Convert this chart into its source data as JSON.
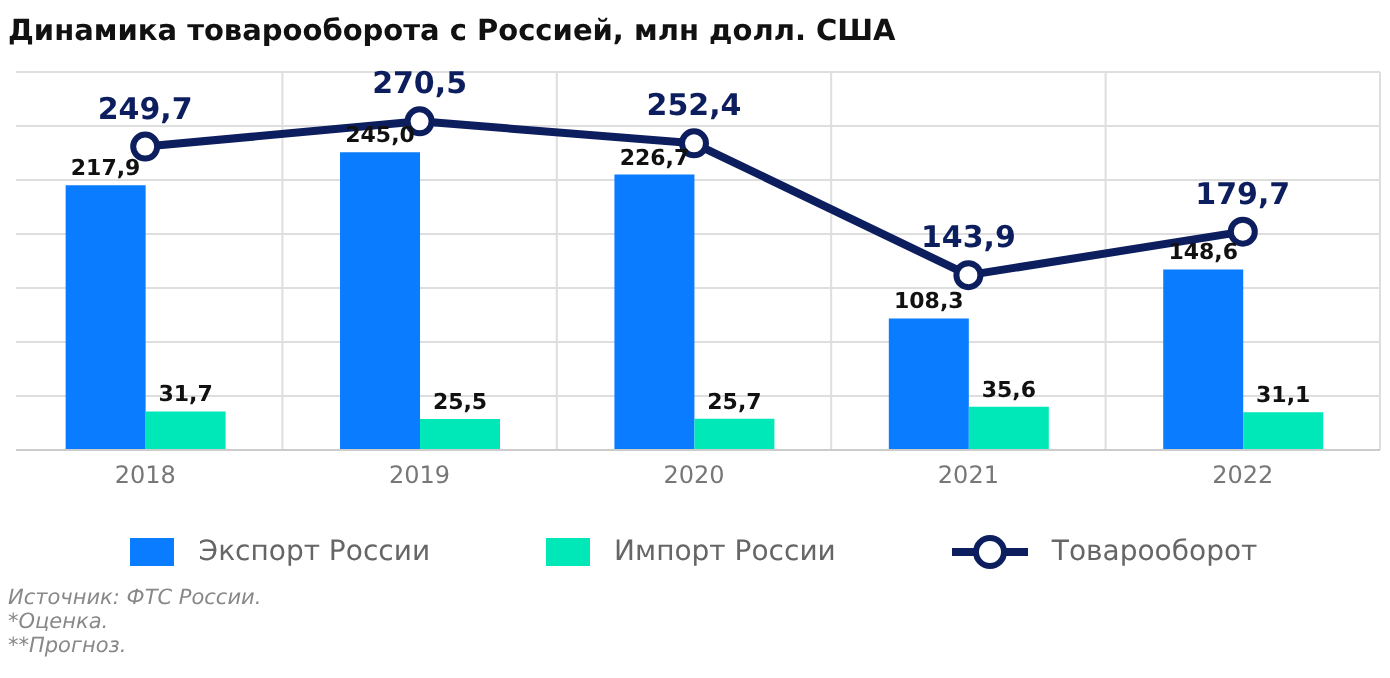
{
  "chart_data": {
    "type": "bar",
    "title": "Динамика товарооборота с Россией, млн долл. США",
    "categories": [
      "2018",
      "2019",
      "2020",
      "2021",
      "2022"
    ],
    "series": [
      {
        "name": "Экспорт России",
        "color": "#0a7cff",
        "values": [
          217.9,
          245.0,
          226.7,
          108.3,
          148.6
        ],
        "value_labels": [
          "217,9",
          "245,0",
          "226,7",
          "108,3",
          "148,6"
        ]
      },
      {
        "name": "Импорт России",
        "color": "#00e8b8",
        "values": [
          31.7,
          25.5,
          25.7,
          35.6,
          31.1
        ],
        "value_labels": [
          "31,7",
          "25,5",
          "25,7",
          "35,6",
          "31,1"
        ]
      },
      {
        "name": "Товарооборот",
        "type": "line",
        "color": "#0d1e5e",
        "values": [
          249.7,
          270.5,
          252.4,
          143.9,
          179.7
        ],
        "value_labels": [
          "249,7",
          "270,5",
          "252,4",
          "143,9",
          "179,7"
        ]
      }
    ],
    "tick_labels": "x",
    "grid": true,
    "legend": "bottom",
    "marker": "circle",
    "annotations": [
      "Источник: ФТС России.",
      "*Оценка.",
      "**Прогноз."
    ]
  }
}
